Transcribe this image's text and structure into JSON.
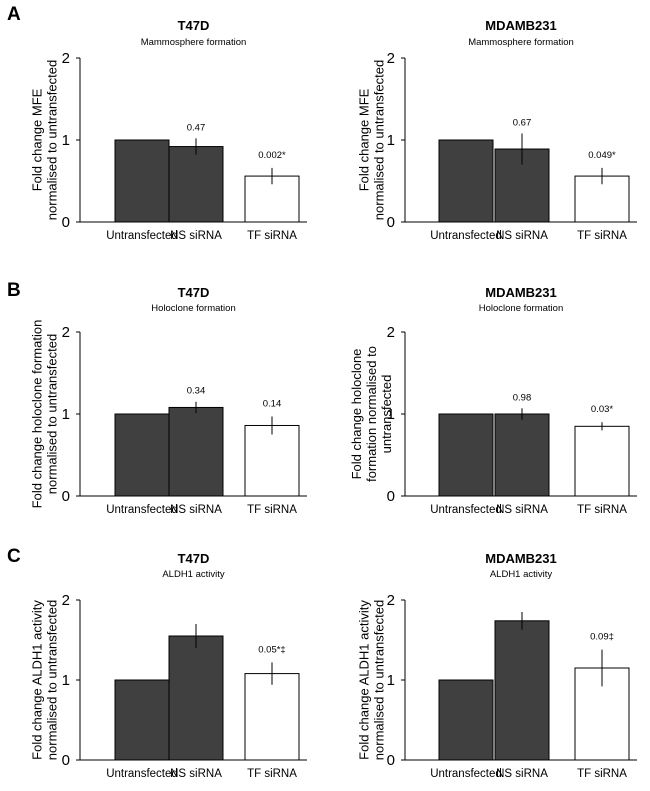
{
  "panels": [
    {
      "letter": "A"
    },
    {
      "letter": "B"
    },
    {
      "letter": "C"
    }
  ],
  "colors": {
    "dark_bar": "#404040",
    "light_bar": "#ffffff",
    "outline": "#000000"
  },
  "chart_data": [
    {
      "type": "bar",
      "panel": "A",
      "title": "T47D",
      "subtitle": "Mammosphere formation",
      "ylabel": [
        "Fold change MFE",
        "normalised to untransfected"
      ],
      "categories": [
        "Untransfected",
        "NS siRNA",
        "TF siRNA"
      ],
      "values": [
        1.0,
        0.92,
        0.56
      ],
      "errors": [
        0,
        0.1,
        0.1
      ],
      "data_labels": [
        "",
        "0.47",
        "0.002*"
      ],
      "ylim": [
        0,
        2
      ],
      "yticks": [
        "0",
        "1",
        "2"
      ]
    },
    {
      "type": "bar",
      "panel": "A",
      "title": "MDAMB231",
      "subtitle": "Mammosphere formation",
      "ylabel": [
        "Fold change MFE",
        "normalised to untransfected"
      ],
      "categories": [
        "Untransfected",
        "NS siRNA",
        "TF siRNA"
      ],
      "values": [
        1.0,
        0.89,
        0.56
      ],
      "errors": [
        0,
        0.19,
        0.1
      ],
      "data_labels": [
        "",
        "0.67",
        "0.049*"
      ],
      "ylim": [
        0,
        2
      ],
      "yticks": [
        "0",
        "1",
        "2"
      ]
    },
    {
      "type": "bar",
      "panel": "B",
      "title": "T47D",
      "subtitle": "Holoclone formation",
      "ylabel": [
        "Fold change holoclone formation",
        "normalised to untransfected"
      ],
      "categories": [
        "Untransfected",
        "NS siRNA",
        "TF siRNA"
      ],
      "values": [
        1.0,
        1.08,
        0.86
      ],
      "errors": [
        0,
        0.07,
        0.11
      ],
      "data_labels": [
        "",
        "0.34",
        "0.14"
      ],
      "ylim": [
        0,
        2
      ],
      "yticks": [
        "0",
        "1",
        "2"
      ]
    },
    {
      "type": "bar",
      "panel": "B",
      "title": "MDAMB231",
      "subtitle": "Holoclone formation",
      "ylabel": [
        "Fold change holoclone",
        "formation normalised to",
        "untransfected"
      ],
      "categories": [
        "Untransfected",
        "NS siRNA",
        "TF siRNA"
      ],
      "values": [
        1.0,
        1.0,
        0.85
      ],
      "errors": [
        0,
        0.07,
        0.05
      ],
      "data_labels": [
        "",
        "0.98",
        "0.03*"
      ],
      "ylim": [
        0,
        2
      ],
      "yticks": [
        "0",
        "1",
        "2"
      ]
    },
    {
      "type": "bar",
      "panel": "C",
      "title": "T47D",
      "subtitle": "ALDH1 activity",
      "ylabel": [
        "Fold change ALDH1 activity",
        "normalised to untransfected"
      ],
      "categories": [
        "Untransfected",
        "NS siRNA",
        "TF siRNA"
      ],
      "values": [
        1.0,
        1.55,
        1.08
      ],
      "errors": [
        0,
        0.15,
        0.14
      ],
      "data_labels": [
        "",
        "",
        "0.05*‡"
      ],
      "ylim": [
        0,
        2
      ],
      "yticks": [
        "0",
        "1",
        "2"
      ]
    },
    {
      "type": "bar",
      "panel": "C",
      "title": "MDAMB231",
      "subtitle": "ALDH1 activity",
      "ylabel": [
        "Fold change ALDH1 activity",
        "normalised to untransfected"
      ],
      "categories": [
        "Untransfected",
        "NS siRNA",
        "TF siRNA"
      ],
      "values": [
        1.0,
        1.74,
        1.15
      ],
      "errors": [
        0,
        0.11,
        0.23
      ],
      "data_labels": [
        "",
        "",
        "0.09‡"
      ],
      "ylim": [
        0,
        2
      ],
      "yticks": [
        "0",
        "1",
        "2"
      ]
    }
  ]
}
